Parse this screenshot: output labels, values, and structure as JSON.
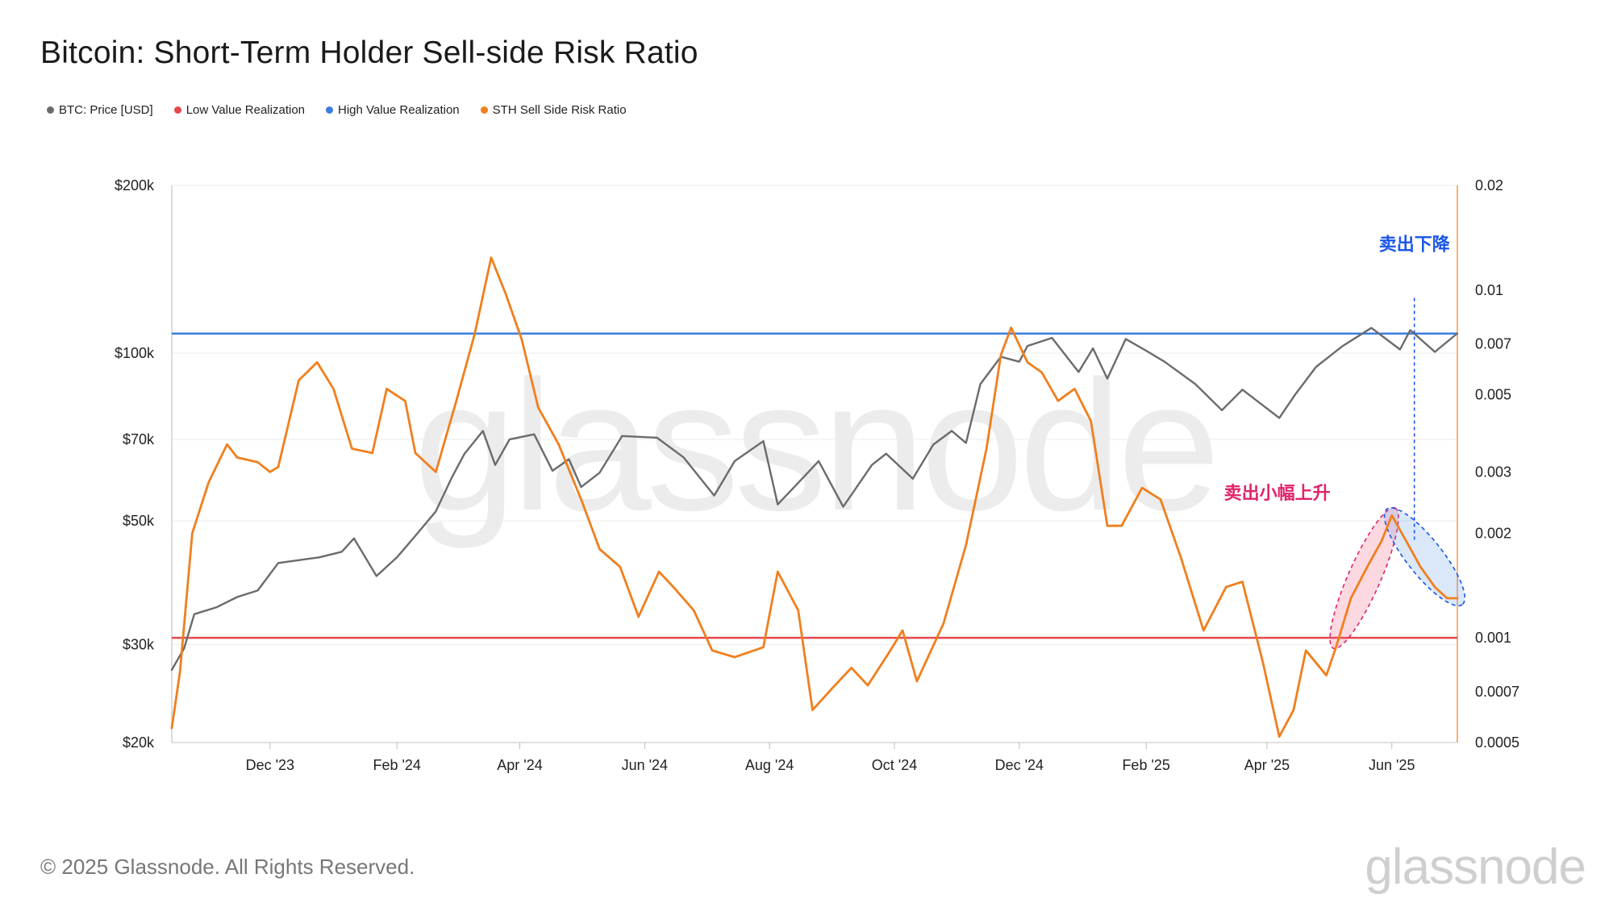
{
  "chart_data": {
    "type": "line",
    "title": "Bitcoin: Short-Term Holder Sell-side Risk Ratio",
    "legend": [
      {
        "name": "BTC: Price [USD]",
        "color": "#6b6b6b"
      },
      {
        "name": "Low Value Realization",
        "color": "#e5484d"
      },
      {
        "name": "High Value Realization",
        "color": "#3b7ddd"
      },
      {
        "name": "STH Sell Side Risk Ratio",
        "color": "#f07f1d"
      }
    ],
    "legend_position": "top-left",
    "x_range": [
      "2023-10-14",
      "2025-07-03"
    ],
    "x_ticks": [
      {
        "date": "2023-12-01",
        "label": "Dec '23"
      },
      {
        "date": "2024-02-01",
        "label": "Feb '24"
      },
      {
        "date": "2024-04-01",
        "label": "Apr '24"
      },
      {
        "date": "2024-06-01",
        "label": "Jun '24"
      },
      {
        "date": "2024-08-01",
        "label": "Aug '24"
      },
      {
        "date": "2024-10-01",
        "label": "Oct '24"
      },
      {
        "date": "2024-12-01",
        "label": "Dec '24"
      },
      {
        "date": "2025-02-01",
        "label": "Feb '25"
      },
      {
        "date": "2025-04-01",
        "label": "Apr '25"
      },
      {
        "date": "2025-06-01",
        "label": "Jun '25"
      }
    ],
    "y_left": {
      "scale": "log",
      "range": [
        20000,
        200000
      ],
      "ticks": [
        {
          "value": 20000,
          "label": "$20k"
        },
        {
          "value": 30000,
          "label": "$30k"
        },
        {
          "value": 50000,
          "label": "$50k"
        },
        {
          "value": 70000,
          "label": "$70k"
        },
        {
          "value": 100000,
          "label": "$100k"
        },
        {
          "value": 200000,
          "label": "$200k"
        }
      ]
    },
    "y_right": {
      "scale": "log",
      "range": [
        0.0005,
        0.02
      ],
      "ticks": [
        {
          "value": 0.0005,
          "label": "0.0005"
        },
        {
          "value": 0.0007,
          "label": "0.0007"
        },
        {
          "value": 0.001,
          "label": "0.001"
        },
        {
          "value": 0.002,
          "label": "0.002"
        },
        {
          "value": 0.003,
          "label": "0.003"
        },
        {
          "value": 0.005,
          "label": "0.005"
        },
        {
          "value": 0.007,
          "label": "0.007"
        },
        {
          "value": 0.01,
          "label": "0.01"
        },
        {
          "value": 0.02,
          "label": "0.02"
        }
      ]
    },
    "grid": true,
    "thresholds": [
      {
        "name": "Low Value Realization",
        "value": 0.001,
        "axis": "right",
        "color": "#e5484d"
      },
      {
        "name": "High Value Realization",
        "value": 0.0075,
        "axis": "right",
        "color": "#3b7ddd"
      }
    ],
    "series": [
      {
        "name": "BTC: Price [USD]",
        "axis": "left",
        "color": "#6b6b6b",
        "points": [
          [
            "2023-10-14",
            27000
          ],
          [
            "2023-10-20",
            29500
          ],
          [
            "2023-10-25",
            34000
          ],
          [
            "2023-11-05",
            35000
          ],
          [
            "2023-11-15",
            36500
          ],
          [
            "2023-11-25",
            37500
          ],
          [
            "2023-12-05",
            42000
          ],
          [
            "2023-12-15",
            42500
          ],
          [
            "2023-12-25",
            43000
          ],
          [
            "2024-01-05",
            44000
          ],
          [
            "2024-01-11",
            46500
          ],
          [
            "2024-01-22",
            39800
          ],
          [
            "2024-02-01",
            43000
          ],
          [
            "2024-02-10",
            47000
          ],
          [
            "2024-02-20",
            52000
          ],
          [
            "2024-02-28",
            60000
          ],
          [
            "2024-03-05",
            66000
          ],
          [
            "2024-03-14",
            72500
          ],
          [
            "2024-03-20",
            63000
          ],
          [
            "2024-03-27",
            70000
          ],
          [
            "2024-04-08",
            71500
          ],
          [
            "2024-04-17",
            61500
          ],
          [
            "2024-04-25",
            64500
          ],
          [
            "2024-05-01",
            57500
          ],
          [
            "2024-05-10",
            61000
          ],
          [
            "2024-05-21",
            71000
          ],
          [
            "2024-06-07",
            70500
          ],
          [
            "2024-06-20",
            65000
          ],
          [
            "2024-07-05",
            55500
          ],
          [
            "2024-07-15",
            64000
          ],
          [
            "2024-07-29",
            69500
          ],
          [
            "2024-08-05",
            53500
          ],
          [
            "2024-08-15",
            58500
          ],
          [
            "2024-08-25",
            64000
          ],
          [
            "2024-09-06",
            53000
          ],
          [
            "2024-09-20",
            63000
          ],
          [
            "2024-09-27",
            66000
          ],
          [
            "2024-10-10",
            59500
          ],
          [
            "2024-10-20",
            68500
          ],
          [
            "2024-10-29",
            72500
          ],
          [
            "2024-11-05",
            69000
          ],
          [
            "2024-11-12",
            88000
          ],
          [
            "2024-11-22",
            98500
          ],
          [
            "2024-12-01",
            96500
          ],
          [
            "2024-12-05",
            103000
          ],
          [
            "2024-12-17",
            106500
          ],
          [
            "2024-12-30",
            92500
          ],
          [
            "2025-01-06",
            102000
          ],
          [
            "2025-01-13",
            90000
          ],
          [
            "2025-01-22",
            106000
          ],
          [
            "2025-02-01",
            101000
          ],
          [
            "2025-02-10",
            96500
          ],
          [
            "2025-02-25",
            88000
          ],
          [
            "2025-03-10",
            79000
          ],
          [
            "2025-03-20",
            86000
          ],
          [
            "2025-04-07",
            76500
          ],
          [
            "2025-04-15",
            84500
          ],
          [
            "2025-04-25",
            94500
          ],
          [
            "2025-05-08",
            103000
          ],
          [
            "2025-05-22",
            111000
          ],
          [
            "2025-06-05",
            101500
          ],
          [
            "2025-06-10",
            110000
          ],
          [
            "2025-06-22",
            100500
          ],
          [
            "2025-07-03",
            108500
          ]
        ]
      },
      {
        "name": "STH Sell Side Risk Ratio",
        "axis": "right",
        "color": "#f07f1d",
        "points": [
          [
            "2023-10-14",
            0.00055
          ],
          [
            "2023-10-18",
            0.0008
          ],
          [
            "2023-10-24",
            0.002
          ],
          [
            "2023-11-01",
            0.0028
          ],
          [
            "2023-11-10",
            0.0036
          ],
          [
            "2023-11-15",
            0.0033
          ],
          [
            "2023-11-25",
            0.0032
          ],
          [
            "2023-12-01",
            0.003
          ],
          [
            "2023-12-05",
            0.0031
          ],
          [
            "2023-12-15",
            0.0055
          ],
          [
            "2023-12-24",
            0.0062
          ],
          [
            "2024-01-01",
            0.0052
          ],
          [
            "2024-01-10",
            0.0035
          ],
          [
            "2024-01-20",
            0.0034
          ],
          [
            "2024-01-27",
            0.0052
          ],
          [
            "2024-02-05",
            0.0048
          ],
          [
            "2024-02-10",
            0.0034
          ],
          [
            "2024-02-20",
            0.003
          ],
          [
            "2024-03-01",
            0.0048
          ],
          [
            "2024-03-10",
            0.0075
          ],
          [
            "2024-03-18",
            0.0124
          ],
          [
            "2024-03-25",
            0.0098
          ],
          [
            "2024-04-02",
            0.0072
          ],
          [
            "2024-04-10",
            0.0046
          ],
          [
            "2024-04-20",
            0.0036
          ],
          [
            "2024-05-01",
            0.0025
          ],
          [
            "2024-05-10",
            0.0018
          ],
          [
            "2024-05-20",
            0.0016
          ],
          [
            "2024-05-29",
            0.00115
          ],
          [
            "2024-06-08",
            0.00155
          ],
          [
            "2024-06-15",
            0.0014
          ],
          [
            "2024-06-25",
            0.0012
          ],
          [
            "2024-07-04",
            0.00092
          ],
          [
            "2024-07-15",
            0.00088
          ],
          [
            "2024-07-29",
            0.00094
          ],
          [
            "2024-08-05",
            0.00155
          ],
          [
            "2024-08-15",
            0.0012
          ],
          [
            "2024-08-22",
            0.00062
          ],
          [
            "2024-09-01",
            0.00072
          ],
          [
            "2024-09-10",
            0.00082
          ],
          [
            "2024-09-18",
            0.00073
          ],
          [
            "2024-09-28",
            0.0009
          ],
          [
            "2024-10-05",
            0.00105
          ],
          [
            "2024-10-12",
            0.00075
          ],
          [
            "2024-10-25",
            0.0011
          ],
          [
            "2024-11-05",
            0.00185
          ],
          [
            "2024-11-15",
            0.0035
          ],
          [
            "2024-11-22",
            0.0065
          ],
          [
            "2024-11-27",
            0.0078
          ],
          [
            "2024-12-05",
            0.0062
          ],
          [
            "2024-12-12",
            0.0058
          ],
          [
            "2024-12-20",
            0.0048
          ],
          [
            "2024-12-28",
            0.0052
          ],
          [
            "2025-01-05",
            0.0042
          ],
          [
            "2025-01-13",
            0.0021
          ],
          [
            "2025-01-20",
            0.0021
          ],
          [
            "2025-01-30",
            0.0027
          ],
          [
            "2025-02-08",
            0.0025
          ],
          [
            "2025-02-18",
            0.0017
          ],
          [
            "2025-03-01",
            0.00105
          ],
          [
            "2025-03-12",
            0.0014
          ],
          [
            "2025-03-20",
            0.00145
          ],
          [
            "2025-03-30",
            0.00085
          ],
          [
            "2025-04-07",
            0.00052
          ],
          [
            "2025-04-14",
            0.00062
          ],
          [
            "2025-04-20",
            0.00092
          ],
          [
            "2025-04-30",
            0.00078
          ],
          [
            "2025-05-05",
            0.00095
          ],
          [
            "2025-05-12",
            0.0013
          ],
          [
            "2025-05-20",
            0.0016
          ],
          [
            "2025-05-27",
            0.0019
          ],
          [
            "2025-06-01",
            0.00225
          ],
          [
            "2025-06-08",
            0.0019
          ],
          [
            "2025-06-15",
            0.0016
          ],
          [
            "2025-06-22",
            0.0014
          ],
          [
            "2025-06-28",
            0.0013
          ],
          [
            "2025-07-03",
            0.0013
          ]
        ]
      }
    ],
    "annotations": [
      {
        "text": "卖出下降",
        "color": "#1a56e8"
      },
      {
        "text": "卖出小幅上升",
        "color": "#e0246b"
      }
    ],
    "watermark": "glassnode"
  },
  "footer": {
    "copyright": "© 2025 Glassnode. All Rights Reserved.",
    "logo_text": "glassnode"
  }
}
